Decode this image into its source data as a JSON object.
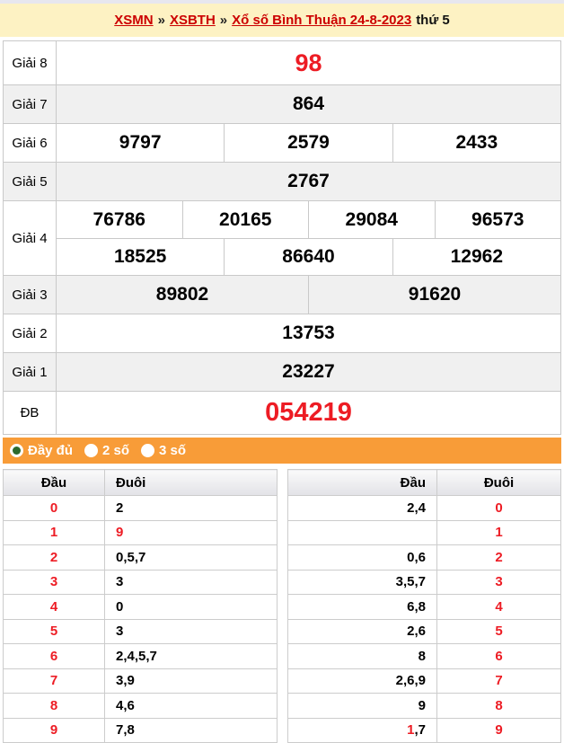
{
  "breadcrumb": {
    "links": [
      {
        "label": "XSMN"
      },
      {
        "label": "XSBTH"
      },
      {
        "label": "Xổ số Bình Thuận 24-8-2023"
      }
    ],
    "separator": "»",
    "suffix": "thứ 5"
  },
  "results_table": {
    "rows": [
      {
        "label": "Giải 8",
        "highlight": true,
        "groups": [
          [
            "98"
          ]
        ]
      },
      {
        "label": "Giải 7",
        "highlight": false,
        "groups": [
          [
            "864"
          ]
        ]
      },
      {
        "label": "Giải 6",
        "highlight": false,
        "groups": [
          [
            "9797",
            "2579",
            "2433"
          ]
        ]
      },
      {
        "label": "Giải 5",
        "highlight": false,
        "groups": [
          [
            "2767"
          ]
        ]
      },
      {
        "label": "Giải 4",
        "highlight": false,
        "groups": [
          [
            "76786",
            "20165",
            "29084",
            "96573"
          ],
          [
            "18525",
            "86640",
            "12962"
          ]
        ]
      },
      {
        "label": "Giải 3",
        "highlight": false,
        "groups": [
          [
            "89802",
            "91620"
          ]
        ]
      },
      {
        "label": "Giải 2",
        "highlight": false,
        "groups": [
          [
            "13753"
          ]
        ]
      },
      {
        "label": "Giải 1",
        "highlight": false,
        "groups": [
          [
            "23227"
          ]
        ]
      },
      {
        "label": "ĐB",
        "highlight": true,
        "groups": [
          [
            "054219"
          ]
        ]
      }
    ]
  },
  "filter_bar": {
    "options": [
      {
        "label": "Đầy đủ",
        "selected": true
      },
      {
        "label": "2 số",
        "selected": false
      },
      {
        "label": "3 số",
        "selected": false
      }
    ]
  },
  "head_tail_tables": {
    "left": {
      "headers": {
        "dau": "Đầu",
        "duoi": "Đuôi"
      },
      "rows": [
        {
          "dau": [
            {
              "text": "0",
              "red": true
            }
          ],
          "duoi": [
            {
              "text": "2",
              "red": false
            }
          ]
        },
        {
          "dau": [
            {
              "text": "1",
              "red": true
            }
          ],
          "duoi": [
            {
              "text": "9",
              "red": true
            }
          ]
        },
        {
          "dau": [
            {
              "text": "2",
              "red": true
            }
          ],
          "duoi": [
            {
              "text": "0,5,7",
              "red": false
            }
          ]
        },
        {
          "dau": [
            {
              "text": "3",
              "red": true
            }
          ],
          "duoi": [
            {
              "text": "3",
              "red": false
            }
          ]
        },
        {
          "dau": [
            {
              "text": "4",
              "red": true
            }
          ],
          "duoi": [
            {
              "text": "0",
              "red": false
            }
          ]
        },
        {
          "dau": [
            {
              "text": "5",
              "red": true
            }
          ],
          "duoi": [
            {
              "text": "3",
              "red": false
            }
          ]
        },
        {
          "dau": [
            {
              "text": "6",
              "red": true
            }
          ],
          "duoi": [
            {
              "text": "2,4,5,7",
              "red": false
            }
          ]
        },
        {
          "dau": [
            {
              "text": "7",
              "red": true
            }
          ],
          "duoi": [
            {
              "text": "3,9",
              "red": false
            }
          ]
        },
        {
          "dau": [
            {
              "text": "8",
              "red": true
            }
          ],
          "duoi": [
            {
              "text": "4,6",
              "red": false
            }
          ]
        },
        {
          "dau": [
            {
              "text": "9",
              "red": true
            }
          ],
          "duoi": [
            {
              "text": "7,8",
              "red": false
            }
          ]
        }
      ]
    },
    "right": {
      "headers": {
        "dau": "Đầu",
        "duoi": "Đuôi"
      },
      "rows": [
        {
          "dau": [
            {
              "text": "2,4",
              "red": false
            }
          ],
          "duoi": [
            {
              "text": "0",
              "red": true
            }
          ]
        },
        {
          "dau": [
            {
              "text": "",
              "red": false
            }
          ],
          "duoi": [
            {
              "text": "1",
              "red": true
            }
          ]
        },
        {
          "dau": [
            {
              "text": "0,6",
              "red": false
            }
          ],
          "duoi": [
            {
              "text": "2",
              "red": true
            }
          ]
        },
        {
          "dau": [
            {
              "text": "3,5,7",
              "red": false
            }
          ],
          "duoi": [
            {
              "text": "3",
              "red": true
            }
          ]
        },
        {
          "dau": [
            {
              "text": "6,8",
              "red": false
            }
          ],
          "duoi": [
            {
              "text": "4",
              "red": true
            }
          ]
        },
        {
          "dau": [
            {
              "text": "2,6",
              "red": false
            }
          ],
          "duoi": [
            {
              "text": "5",
              "red": true
            }
          ]
        },
        {
          "dau": [
            {
              "text": "8",
              "red": false
            }
          ],
          "duoi": [
            {
              "text": "6",
              "red": true
            }
          ]
        },
        {
          "dau": [
            {
              "text": "2,6,9",
              "red": false
            }
          ],
          "duoi": [
            {
              "text": "7",
              "red": true
            }
          ]
        },
        {
          "dau": [
            {
              "text": "9",
              "red": false
            }
          ],
          "duoi": [
            {
              "text": "8",
              "red": true
            }
          ]
        },
        {
          "dau": [
            {
              "text": "1",
              "red": true
            },
            {
              "text": ",7",
              "red": false
            }
          ],
          "duoi": [
            {
              "text": "9",
              "red": true
            }
          ]
        }
      ]
    }
  },
  "colors": {
    "banner_bg": "#fdf2c3",
    "link_red": "#cc0000",
    "number_red": "#ed1c24",
    "row_alt_bg": "#f0f0f0",
    "accent_orange": "#f89c38",
    "radio_selected_green": "#2d6a2d",
    "table_border": "#c9c9c9"
  }
}
